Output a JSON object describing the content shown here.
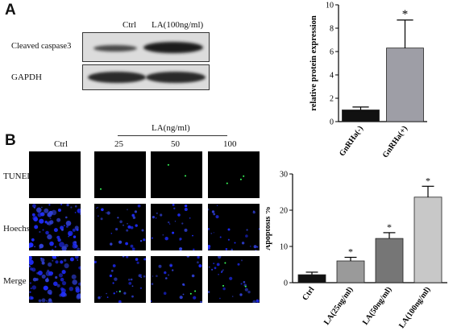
{
  "panel_a": {
    "letter": "A",
    "western_blot": {
      "lane_labels": [
        "Ctrl",
        "LA(100ng/ml)"
      ],
      "row_labels": [
        "Cleaved caspase3",
        "GAPDH"
      ]
    }
  },
  "panel_b": {
    "letter": "B",
    "microscopy": {
      "group_label": "LA(ng/ml)",
      "column_labels": [
        "Ctrl",
        "25",
        "50",
        "100"
      ],
      "row_labels": [
        "TUNEL",
        "Hoechst",
        "Merge"
      ]
    }
  },
  "chart_data": [
    {
      "type": "bar",
      "categories": [
        "GnRHa(-)",
        "GnRHa(+)"
      ],
      "values": [
        1.0,
        6.3
      ],
      "errors": [
        0.25,
        2.4
      ],
      "significance": [
        "",
        "*"
      ],
      "ylabel": "relative protein expression",
      "xlabel": "",
      "ylim": [
        0,
        10
      ],
      "yticks": [
        0,
        2,
        4,
        6,
        8,
        10
      ],
      "colors": [
        "#111111",
        "#9e9ea6"
      ]
    },
    {
      "type": "bar",
      "categories": [
        "Ctrl",
        "LA(25ng/ml)",
        "LA(50ng/ml)",
        "LA(100ng/ml)"
      ],
      "values": [
        2.2,
        6.0,
        12.2,
        23.6
      ],
      "errors": [
        0.7,
        1.0,
        1.6,
        3.0
      ],
      "significance": [
        "",
        "*",
        "*",
        "*"
      ],
      "ylabel": "Apoptosis %",
      "xlabel": "",
      "ylim": [
        0,
        30
      ],
      "yticks": [
        0,
        10,
        20,
        30
      ],
      "colors": [
        "#111111",
        "#9a9a9a",
        "#767676",
        "#c8c8c8"
      ]
    }
  ]
}
